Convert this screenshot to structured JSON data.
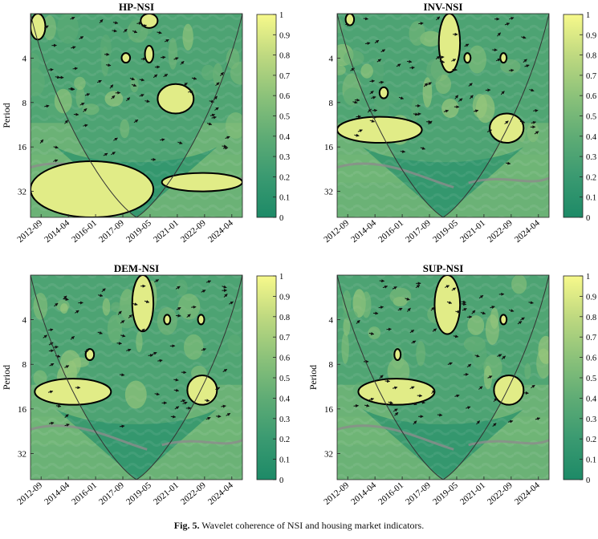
{
  "caption": {
    "label": "Fig. 5.",
    "text": "Wavelet coherence of NSI and housing market indicators."
  },
  "colors": {
    "colormap": [
      "#1d8a67",
      "#3a9a71",
      "#5fac75",
      "#8cc27a",
      "#bfd980",
      "#f7f98b"
    ],
    "contour": "#000000",
    "arrow": "#111111",
    "coi_line": "#333333",
    "ridge_line": "#8c8c8c"
  },
  "chart_data": [
    {
      "type": "heatmap",
      "title": "HP-NSI",
      "ylabel": "Period",
      "y_scale": "log2",
      "y_ticks": [
        4,
        8,
        16,
        32
      ],
      "y_range": [
        2,
        48
      ],
      "x_ticks": [
        "2012-09",
        "2014-04",
        "2016-01",
        "2017-09",
        "2019-05",
        "2021-01",
        "2022-09",
        "2024-04"
      ],
      "colorbar": {
        "ticks": [
          0,
          0.1,
          0.2,
          0.3,
          0.4,
          0.5,
          0.6,
          0.7,
          0.8,
          0.9,
          1
        ],
        "range": [
          0,
          1
        ]
      },
      "significant_regions": [
        {
          "x": [
            0.0,
            0.07
          ],
          "period": [
            2,
            3.0
          ]
        },
        {
          "x": [
            0.52,
            0.6
          ],
          "period": [
            2,
            2.5
          ]
        },
        {
          "x": [
            0.54,
            0.58
          ],
          "period": [
            3.3,
            4.3
          ]
        },
        {
          "x": [
            0.43,
            0.47
          ],
          "period": [
            3.7,
            4.3
          ]
        },
        {
          "x": [
            0.6,
            0.77
          ],
          "period": [
            6.0,
            9.5
          ]
        },
        {
          "x": [
            0.0,
            0.58
          ],
          "period": [
            20,
            48
          ]
        },
        {
          "x": [
            0.62,
            1.0
          ],
          "period": [
            24,
            32
          ]
        }
      ]
    },
    {
      "type": "heatmap",
      "title": "INV-NSI",
      "ylabel": "",
      "y_scale": "log2",
      "y_ticks": [
        4,
        8,
        16,
        32
      ],
      "y_range": [
        2,
        48
      ],
      "x_ticks": [
        "2012-09",
        "2014-04",
        "2016-01",
        "2017-09",
        "2019-05",
        "2021-01",
        "2022-09",
        "2024-04"
      ],
      "colorbar": {
        "ticks": [
          0,
          0.1,
          0.2,
          0.3,
          0.4,
          0.5,
          0.6,
          0.7,
          0.8,
          0.9,
          1
        ],
        "range": [
          0,
          1
        ]
      },
      "significant_regions": [
        {
          "x": [
            0.04,
            0.08
          ],
          "period": [
            2,
            2.4
          ]
        },
        {
          "x": [
            0.48,
            0.58
          ],
          "period": [
            2,
            5.0
          ]
        },
        {
          "x": [
            0.6,
            0.63
          ],
          "period": [
            3.7,
            4.3
          ]
        },
        {
          "x": [
            0.77,
            0.8
          ],
          "period": [
            3.7,
            4.3
          ]
        },
        {
          "x": [
            0.2,
            0.24
          ],
          "period": [
            6.3,
            7.5
          ]
        },
        {
          "x": [
            0.0,
            0.4
          ],
          "period": [
            10,
            15
          ]
        },
        {
          "x": [
            0.72,
            0.88
          ],
          "period": [
            9.5,
            15
          ]
        }
      ]
    },
    {
      "type": "heatmap",
      "title": "DEM-NSI",
      "ylabel": "Period",
      "y_scale": "log2",
      "y_ticks": [
        4,
        8,
        16,
        32
      ],
      "y_range": [
        2,
        48
      ],
      "x_ticks": [
        "2012-09",
        "2014-04",
        "2016-01",
        "2017-09",
        "2019-05",
        "2021-01",
        "2022-09",
        "2024-04"
      ],
      "colorbar": {
        "ticks": [
          0,
          0.1,
          0.2,
          0.3,
          0.4,
          0.5,
          0.6,
          0.7,
          0.8,
          0.9,
          1
        ],
        "range": [
          0,
          1
        ]
      },
      "significant_regions": [
        {
          "x": [
            0.48,
            0.58
          ],
          "period": [
            2,
            4.8
          ]
        },
        {
          "x": [
            0.63,
            0.66
          ],
          "period": [
            3.7,
            4.3
          ]
        },
        {
          "x": [
            0.79,
            0.82
          ],
          "period": [
            3.7,
            4.3
          ]
        },
        {
          "x": [
            0.26,
            0.3
          ],
          "period": [
            6.3,
            7.5
          ]
        },
        {
          "x": [
            0.02,
            0.38
          ],
          "period": [
            10,
            15
          ]
        },
        {
          "x": [
            0.74,
            0.88
          ],
          "period": [
            9.5,
            15
          ]
        }
      ]
    },
    {
      "type": "heatmap",
      "title": "SUP-NSI",
      "ylabel": "Period",
      "y_scale": "log2",
      "y_ticks": [
        4,
        8,
        16,
        32
      ],
      "y_range": [
        2,
        48
      ],
      "x_ticks": [
        "2012-09",
        "2014-04",
        "2016-01",
        "2017-09",
        "2019-05",
        "2021-01",
        "2022-09",
        "2024-04"
      ],
      "colorbar": {
        "ticks": [
          0,
          0.1,
          0.2,
          0.3,
          0.4,
          0.5,
          0.6,
          0.7,
          0.8,
          0.9,
          1
        ],
        "range": [
          0,
          1
        ]
      },
      "significant_regions": [
        {
          "x": [
            0.46,
            0.58
          ],
          "period": [
            2,
            5.0
          ]
        },
        {
          "x": [
            0.77,
            0.8
          ],
          "period": [
            3.7,
            4.3
          ]
        },
        {
          "x": [
            0.27,
            0.3
          ],
          "period": [
            6.3,
            7.5
          ]
        },
        {
          "x": [
            0.1,
            0.46
          ],
          "period": [
            10,
            15
          ]
        },
        {
          "x": [
            0.74,
            0.88
          ],
          "period": [
            9.5,
            15
          ]
        }
      ]
    }
  ]
}
